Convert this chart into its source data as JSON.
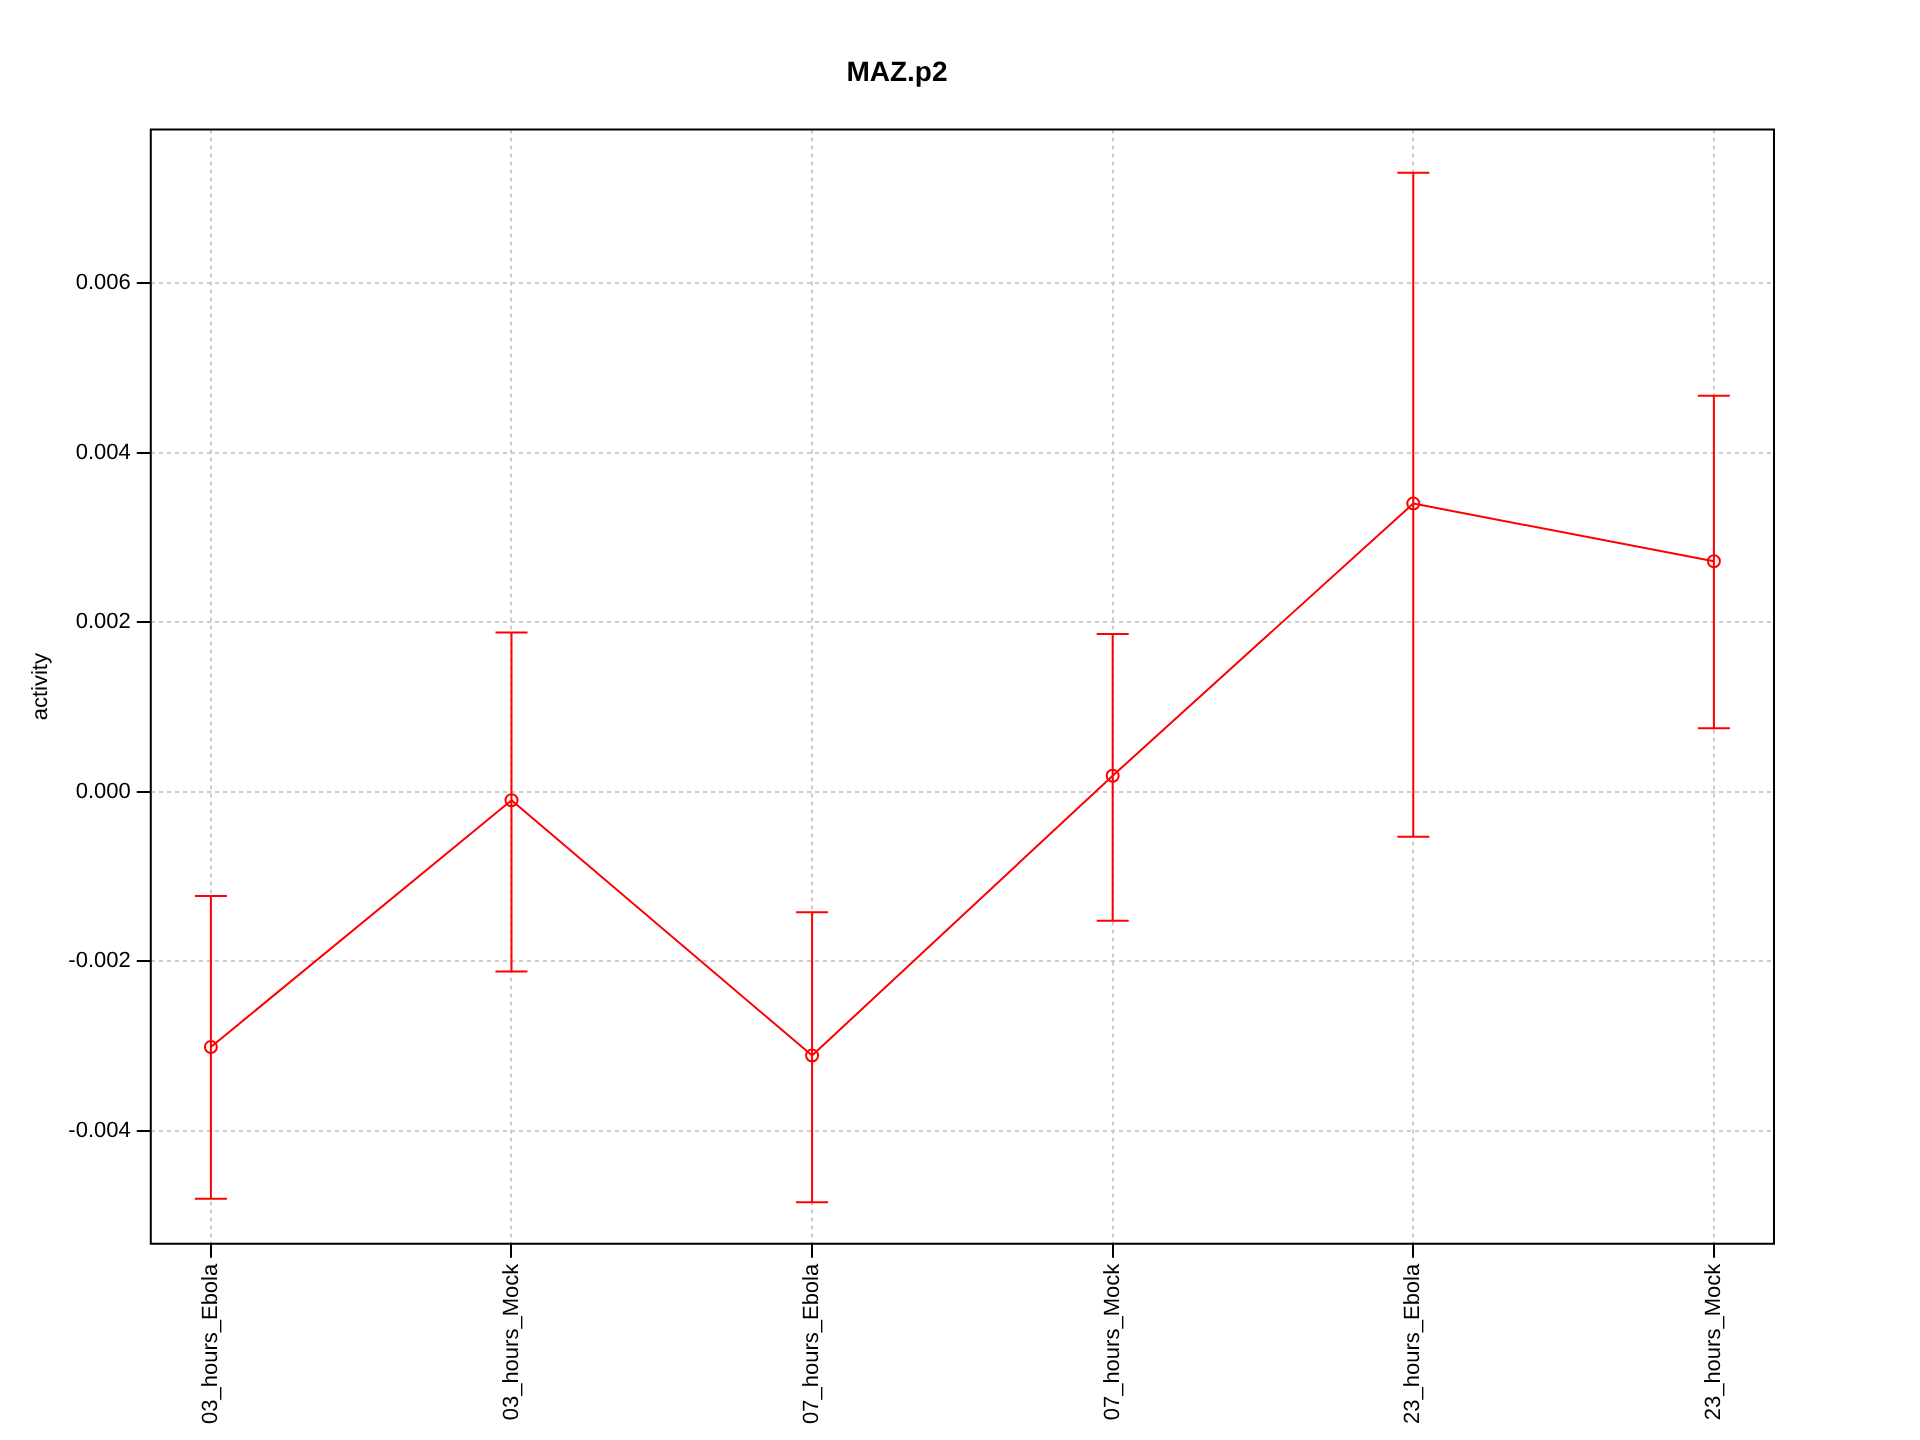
{
  "chart_data": {
    "type": "line",
    "title": "MAZ.p2",
    "ylabel": "activity",
    "categories": [
      "03_hours_Ebola",
      "03_hours_Mock",
      "07_hours_Ebola",
      "07_hours_Mock",
      "23_hours_Ebola",
      "23_hours_Mock"
    ],
    "series": [
      {
        "color": "#ff0000",
        "values": [
          -0.00301,
          -0.0001,
          -0.00311,
          0.00019,
          0.0034,
          0.00272
        ],
        "errors": [
          [
            -0.0048,
            -0.00123
          ],
          [
            -0.00212,
            0.00188
          ],
          [
            -0.00484,
            -0.00142
          ],
          [
            -0.00152,
            0.00186
          ],
          [
            -0.00053,
            0.0073
          ],
          [
            0.00075,
            0.00467
          ]
        ]
      }
    ],
    "ylim": [
      -0.00533,
      0.00781
    ],
    "yticks": [
      {
        "value": -0.004,
        "label": "-0.004"
      },
      {
        "value": -0.002,
        "label": "-0.002"
      },
      {
        "value": 0,
        "label": "0.000"
      },
      {
        "value": 0.002,
        "label": "0.002"
      },
      {
        "value": 0.004,
        "label": "0.004"
      },
      {
        "value": 0.006,
        "label": "0.006"
      }
    ],
    "grid": true,
    "legend": false,
    "marker": "circle",
    "line_style": "solid"
  }
}
